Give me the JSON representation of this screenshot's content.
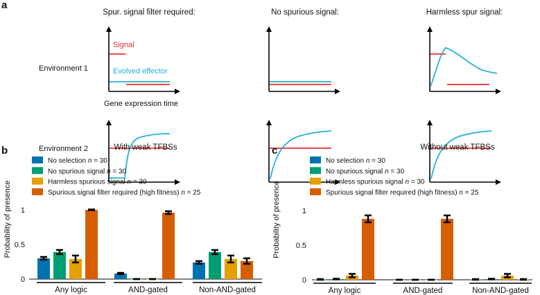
{
  "panel_a": {
    "label": "a",
    "columns": [
      "Spur. signal filter required:",
      "No spurious signal:",
      "Harmless spur signal:"
    ],
    "rows": [
      "Environment 1",
      "Environment 2"
    ],
    "signal_label": "Signal",
    "effector_label": "Evolved effector",
    "xaxis_label": "Gene expression time",
    "signal_color": "#e8302a",
    "effector_color": "#29aee0"
  },
  "chart_data": [
    {
      "type": "bar",
      "panel_label": "b",
      "title": "With weak TFBSs",
      "ylabel": "Probability of presence",
      "ylim": [
        0,
        1
      ],
      "yticks": [
        "0",
        "0.5",
        "1"
      ],
      "categories": [
        "Any logic",
        "AND-gated",
        "Non-AND-gated"
      ],
      "series": [
        {
          "name": "No selection",
          "n": "n",
          "n_text": " = 30",
          "color": "#0072B2",
          "values": [
            0.3,
            0.08,
            0.24
          ],
          "errors": [
            0.02,
            0.01,
            0.02
          ]
        },
        {
          "name": "No spurious signal",
          "n": "n",
          "n_text": " = 30",
          "color": "#009E73",
          "values": [
            0.39,
            0.0,
            0.39
          ],
          "errors": [
            0.03,
            0.0,
            0.03
          ]
        },
        {
          "name": "Harmless spurious signal",
          "n": "n",
          "n_text": " = 30",
          "color": "#E69F00",
          "values": [
            0.29,
            0.0,
            0.29
          ],
          "errors": [
            0.05,
            0.0,
            0.05
          ]
        },
        {
          "name": "Spurious signal filter required (high fitness)",
          "n": "n",
          "n_text": " = 25",
          "color": "#D55E00",
          "values": [
            1.0,
            0.96,
            0.26
          ],
          "errors": [
            0.005,
            0.02,
            0.04
          ]
        }
      ]
    },
    {
      "type": "bar",
      "panel_label": "c",
      "title": "Without weak TFBSs",
      "ylabel": "Probability of presence",
      "ylim": [
        0,
        1
      ],
      "yticks": [
        "0",
        "0.5",
        "1"
      ],
      "categories": [
        "Any logic",
        "AND-gated",
        "Non-AND-gated"
      ],
      "series": [
        {
          "name": "No selection",
          "n": "n",
          "n_text": " = 30",
          "color": "#0072B2",
          "values": [
            0.005,
            0.0,
            0.005
          ],
          "errors": [
            0.005,
            0.0,
            0.005
          ]
        },
        {
          "name": "No spurious signal",
          "n": "n",
          "n_text": " = 30",
          "color": "#009E73",
          "values": [
            0.01,
            0.0,
            0.01
          ],
          "errors": [
            0.005,
            0.0,
            0.005
          ]
        },
        {
          "name": "Harmless spurious signal",
          "n": "n",
          "n_text": " = 30",
          "color": "#E69F00",
          "values": [
            0.06,
            0.0,
            0.06
          ],
          "errors": [
            0.025,
            0.0,
            0.025
          ]
        },
        {
          "name": "Spurious signal filter required (high fitness)",
          "n": "n",
          "n_text": " = 25",
          "color": "#D55E00",
          "values": [
            0.88,
            0.88,
            0.005
          ],
          "errors": [
            0.05,
            0.05,
            0.005
          ]
        }
      ]
    }
  ]
}
